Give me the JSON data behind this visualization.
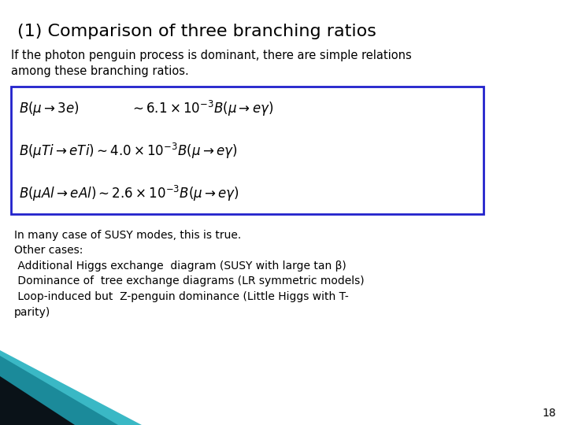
{
  "title": "(1) Comparison of three branching ratios",
  "subtitle": "If the photon penguin process is dominant, there are simple relations\namong these branching ratios.",
  "eq1": "$B(\\mu \\rightarrow 3e) \\qquad\\qquad \\sim 6.1 \\times 10^{-3}B(\\mu \\rightarrow e\\gamma)$",
  "eq2": "$B(\\mu Ti \\rightarrow eTi) \\sim 4.0 \\times 10^{-3}B(\\mu \\rightarrow e\\gamma)$",
  "eq3": "$B(\\mu Al \\rightarrow eAl) \\sim 2.6 \\times 10^{-3}B(\\mu \\rightarrow e\\gamma)$",
  "body_text": "In many case of SUSY modes, this is true.\nOther cases:\n Additional Higgs exchange  diagram (SUSY with large tan β)\n Dominance of  tree exchange diagrams (LR symmetric models)\n Loop-induced but  Z-penguin dominance (Little Higgs with T-\nparity)",
  "page_number": "18",
  "bg_color": "#ffffff",
  "title_color": "#000000",
  "text_color": "#000000",
  "box_color": "#2222cc",
  "title_fontsize": 16,
  "subtitle_fontsize": 10.5,
  "eq_fontsize": 12,
  "body_fontsize": 10
}
